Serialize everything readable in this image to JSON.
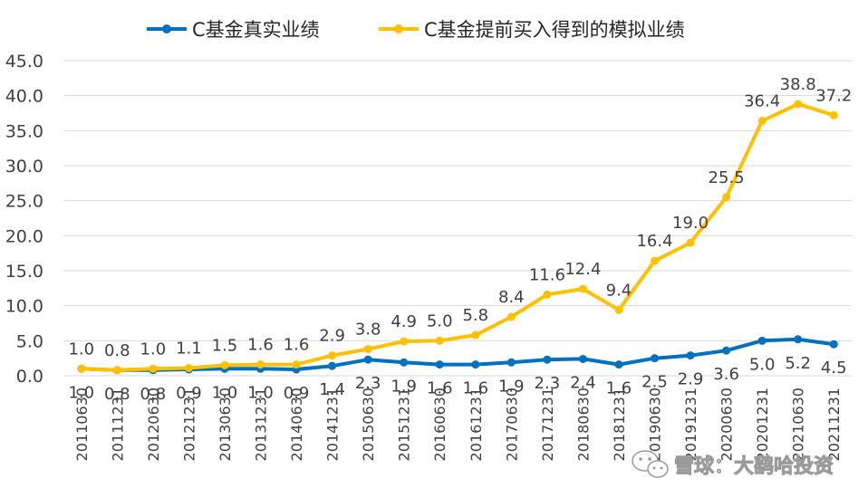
{
  "chart_data": {
    "type": "line",
    "categories": [
      "20110630",
      "20111231",
      "20120630",
      "20121231",
      "20130630",
      "20131231",
      "20140630",
      "20141231",
      "20150630",
      "20151231",
      "20160630",
      "20161231",
      "20170630",
      "20171231",
      "20180630",
      "20181231",
      "20190630",
      "20191231",
      "20200630",
      "20201231",
      "20210630",
      "20211231"
    ],
    "series": [
      {
        "name": "C基金真实业绩",
        "color": "#0070c0",
        "values": [
          1.0,
          0.8,
          0.8,
          0.9,
          1.0,
          1.0,
          0.9,
          1.4,
          2.3,
          1.9,
          1.6,
          1.6,
          1.9,
          2.3,
          2.4,
          1.6,
          2.5,
          2.9,
          3.6,
          5.0,
          5.2,
          4.5
        ]
      },
      {
        "name": "C基金提前买入得到的模拟业绩",
        "color": "#ffc000",
        "values": [
          1.0,
          0.8,
          1.0,
          1.1,
          1.5,
          1.6,
          1.6,
          2.9,
          3.8,
          4.9,
          5.0,
          5.8,
          8.4,
          11.6,
          12.4,
          9.4,
          16.4,
          19.0,
          25.5,
          36.4,
          38.8,
          37.2
        ]
      }
    ],
    "yticks": [
      "0.0",
      "5.0",
      "10.0",
      "15.0",
      "20.0",
      "25.0",
      "30.0",
      "35.0",
      "40.0",
      "45.0"
    ],
    "ylim": [
      0,
      45
    ],
    "grid": true,
    "legend_position": "top"
  },
  "watermark": {
    "text": "雪球：大鹞哈投资",
    "icon": "wechat-icon"
  }
}
